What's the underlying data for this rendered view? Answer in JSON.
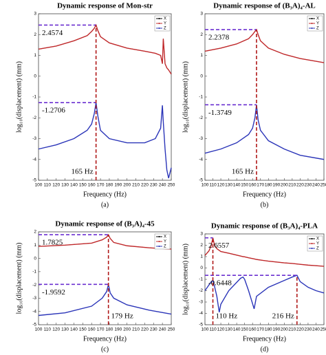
{
  "chart_data": [
    {
      "type": "line",
      "title": "Dynamic response of Mon-str",
      "xlabel": "Frequency (Hz)",
      "ylabel": "log₁₀(displacement) (mm)",
      "panel_label": "(a)",
      "x": [
        100,
        120,
        140,
        155,
        160,
        163,
        165,
        167,
        170,
        180,
        200,
        220,
        232,
        238,
        240,
        241,
        243,
        245,
        247,
        250
      ],
      "series": [
        {
          "name": "X",
          "color": "#000000",
          "values": [
            1.3,
            1.45,
            1.7,
            1.95,
            2.15,
            2.3,
            2.4574,
            2.2,
            1.9,
            1.6,
            1.35,
            1.2,
            1.1,
            1.0,
            0.6,
            1.8,
            0.6,
            0.4,
            0.3,
            0.1
          ]
        },
        {
          "name": "Y",
          "color": "#c0282a",
          "values": [
            1.3,
            1.45,
            1.7,
            1.95,
            2.15,
            2.3,
            2.4574,
            2.2,
            1.9,
            1.6,
            1.35,
            1.2,
            1.1,
            1.0,
            0.6,
            1.8,
            0.6,
            0.4,
            0.3,
            0.1
          ]
        },
        {
          "name": "Z",
          "color": "#2a34b8",
          "values": [
            -3.5,
            -3.3,
            -3.0,
            -2.6,
            -2.3,
            -1.8,
            -1.2706,
            -1.9,
            -2.6,
            -3.0,
            -3.2,
            -3.2,
            -3.0,
            -2.5,
            -1.4,
            -2.2,
            -3.5,
            -4.5,
            -4.9,
            -4.4
          ]
        }
      ],
      "peaks": [
        {
          "x": 165,
          "y": 2.4574
        },
        {
          "x": 165,
          "y": -1.2706
        }
      ],
      "x_markers": [
        {
          "value": 165,
          "label": "165 Hz"
        }
      ],
      "xlim": [
        100,
        250
      ],
      "ylim": [
        -5,
        3
      ],
      "xticks": [
        100,
        110,
        120,
        130,
        140,
        150,
        160,
        170,
        180,
        190,
        200,
        210,
        220,
        230,
        240,
        250
      ],
      "yticks": [
        -5,
        -4,
        -3,
        -2,
        -1,
        0,
        1,
        2,
        3
      ],
      "legend": "upper right"
    },
    {
      "type": "line",
      "title": "Dynamic response of (B₃A)₄-AL",
      "xlabel": "Frequency (Hz)",
      "ylabel": "log₁₀(displacement) (mm)",
      "panel_label": "(b)",
      "x": [
        100,
        120,
        140,
        155,
        160,
        163,
        165,
        167,
        170,
        180,
        200,
        220,
        250
      ],
      "series": [
        {
          "name": "X",
          "color": "#000000",
          "values": [
            1.2,
            1.35,
            1.55,
            1.8,
            2.0,
            2.15,
            2.2378,
            2.0,
            1.7,
            1.35,
            1.05,
            0.85,
            0.65
          ]
        },
        {
          "name": "Y",
          "color": "#c0282a",
          "values": [
            1.2,
            1.35,
            1.55,
            1.8,
            2.0,
            2.15,
            2.2378,
            2.0,
            1.7,
            1.35,
            1.05,
            0.85,
            0.65
          ]
        },
        {
          "name": "Z",
          "color": "#2a34b8",
          "values": [
            -3.7,
            -3.5,
            -3.2,
            -2.8,
            -2.5,
            -2.0,
            -1.3749,
            -2.1,
            -2.6,
            -3.1,
            -3.5,
            -3.8,
            -4.0
          ]
        }
      ],
      "peaks": [
        {
          "x": 165,
          "y": 2.2378
        },
        {
          "x": 165,
          "y": -1.3749
        }
      ],
      "x_markers": [
        {
          "value": 165,
          "label": "165 Hz"
        }
      ],
      "xlim": [
        100,
        250
      ],
      "ylim": [
        -5,
        3
      ],
      "xticks": [
        100,
        110,
        120,
        130,
        140,
        150,
        160,
        170,
        180,
        190,
        200,
        210,
        220,
        230,
        240,
        250
      ],
      "yticks": [
        -5,
        -4,
        -3,
        -2,
        -1,
        0,
        1,
        2,
        3
      ],
      "legend": "upper right"
    },
    {
      "type": "line",
      "title": "Dynamic response of (B₃A)₄-45",
      "xlabel": "Frequency (Hz)",
      "ylabel": "log₁₀(displacement) (mm)",
      "panel_label": "(c)",
      "x": [
        100,
        130,
        160,
        172,
        177,
        179,
        181,
        185,
        200,
        225,
        250
      ],
      "series": [
        {
          "name": "X",
          "color": "#000000",
          "values": [
            0.9,
            1.0,
            1.15,
            1.4,
            1.6,
            1.7825,
            1.5,
            1.2,
            0.95,
            0.8,
            0.7
          ]
        },
        {
          "name": "Y",
          "color": "#c0282a",
          "values": [
            0.9,
            1.0,
            1.15,
            1.4,
            1.6,
            1.7825,
            1.5,
            1.2,
            0.95,
            0.8,
            0.7
          ]
        },
        {
          "name": "Z",
          "color": "#2a34b8",
          "values": [
            -4.3,
            -4.1,
            -3.6,
            -3.0,
            -2.5,
            -1.9592,
            -2.6,
            -3.0,
            -3.5,
            -3.9,
            -4.2
          ]
        }
      ],
      "peaks": [
        {
          "x": 179,
          "y": 1.7825
        },
        {
          "x": 179,
          "y": -1.9592
        }
      ],
      "x_markers": [
        {
          "value": 179,
          "label": "179 Hz"
        }
      ],
      "xlim": [
        100,
        250
      ],
      "ylim": [
        -5,
        2
      ],
      "xticks": [
        100,
        110,
        120,
        130,
        140,
        150,
        160,
        170,
        180,
        190,
        200,
        210,
        220,
        230,
        240,
        250
      ],
      "yticks": [
        -5,
        -4,
        -3,
        -2,
        -1,
        0,
        1,
        2
      ],
      "legend": "upper right"
    },
    {
      "type": "line",
      "title": "Dynamic response of (B₃A)₄-PLA",
      "xlabel": "Frequency (Hz)",
      "ylabel": "log₁₀(displacement) (mm)",
      "panel_label": "(d)",
      "x": [
        100,
        105,
        108,
        110,
        112,
        115,
        118,
        120,
        130,
        145,
        148,
        150,
        155,
        162,
        165,
        180,
        200,
        210,
        216,
        220,
        230,
        240,
        250
      ],
      "series": [
        {
          "name": "X",
          "color": "#000000",
          "values": [
            1.1,
            1.5,
            2.0,
            2.6557,
            2.0,
            1.7,
            1.55,
            1.45,
            1.3,
            1.05,
            1.0,
            0.98,
            0.9,
            0.8,
            0.75,
            0.6,
            0.45,
            0.4,
            0.35,
            0.32,
            0.25,
            0.2,
            0.15
          ]
        },
        {
          "name": "Y",
          "color": "#c0282a",
          "values": [
            1.1,
            1.5,
            2.0,
            2.6557,
            2.0,
            1.7,
            1.55,
            1.45,
            1.3,
            1.05,
            1.0,
            0.98,
            0.9,
            0.8,
            0.75,
            0.6,
            0.45,
            0.4,
            0.35,
            0.32,
            0.25,
            0.2,
            0.15
          ]
        },
        {
          "name": "Z",
          "color": "#2a34b8",
          "values": [
            -2.0,
            -1.5,
            -1.2,
            -1.1,
            -1.6,
            -2.5,
            -3.9,
            -3.2,
            -2.0,
            -0.9,
            -0.8,
            -1.0,
            -2.0,
            -3.6,
            -2.5,
            -1.7,
            -1.1,
            -0.8,
            -0.6448,
            -1.2,
            -1.7,
            -2.0,
            -2.2
          ]
        }
      ],
      "peaks": [
        {
          "x": 110,
          "y": 2.6557
        },
        {
          "x": 216,
          "y": -0.6448
        }
      ],
      "x_markers": [
        {
          "value": 110,
          "label": "110 Hz"
        },
        {
          "value": 216,
          "label": "216 Hz"
        }
      ],
      "xlim": [
        100,
        250
      ],
      "ylim": [
        -5,
        3
      ],
      "xticks": [
        100,
        110,
        120,
        130,
        140,
        150,
        160,
        170,
        180,
        190,
        200,
        210,
        220,
        230,
        240,
        250
      ],
      "yticks": [
        -5,
        -4,
        -3,
        -2,
        -1,
        0,
        1,
        2,
        3
      ],
      "legend": "upper right"
    }
  ]
}
